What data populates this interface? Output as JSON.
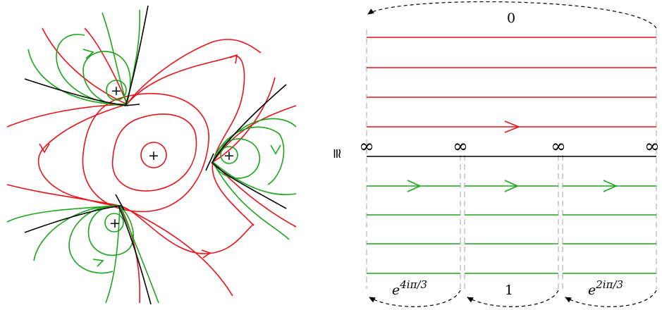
{
  "colors": {
    "red": "#e8121b",
    "green": "#1aa51a",
    "black": "#000000",
    "dash": "#b5b5b5"
  },
  "left_panel": {
    "centre_marker": "+",
    "pole_markers": [
      "+",
      "+",
      "+"
    ]
  },
  "right_panel": {
    "equivalence_symbol": "≅",
    "top_label": "0",
    "infinity_labels": [
      "∞",
      "∞",
      "∞",
      "∞"
    ],
    "bottom_labels": {
      "left_base": "e",
      "left_exp": "4iπ/3",
      "middle": "1",
      "right_base": "e",
      "right_exp": "2iπ/3"
    }
  }
}
